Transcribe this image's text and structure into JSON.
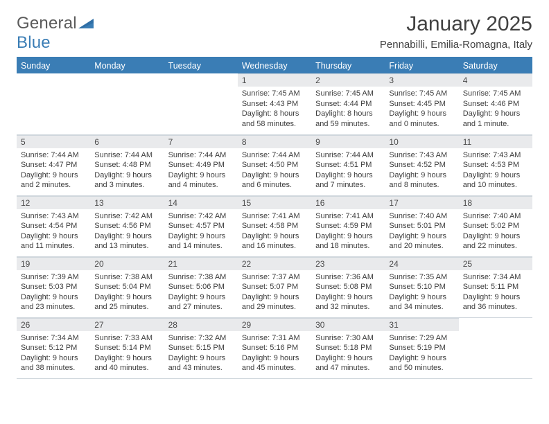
{
  "brand": {
    "name_a": "General",
    "name_b": "Blue"
  },
  "title": "January 2025",
  "subtitle": "Pennabilli, Emilia-Romagna, Italy",
  "colors": {
    "accent": "#3a7db5",
    "header_bg": "#3a7db5",
    "header_fg": "#ffffff",
    "daynum_bg": "#e9eaec",
    "rule": "#cfd6dc",
    "text": "#3d3d3d"
  },
  "day_names": [
    "Sunday",
    "Monday",
    "Tuesday",
    "Wednesday",
    "Thursday",
    "Friday",
    "Saturday"
  ],
  "weeks": [
    [
      null,
      null,
      null,
      {
        "n": "1",
        "sunrise": "7:45 AM",
        "sunset": "4:43 PM",
        "daylight": "8 hours and 58 minutes."
      },
      {
        "n": "2",
        "sunrise": "7:45 AM",
        "sunset": "4:44 PM",
        "daylight": "8 hours and 59 minutes."
      },
      {
        "n": "3",
        "sunrise": "7:45 AM",
        "sunset": "4:45 PM",
        "daylight": "9 hours and 0 minutes."
      },
      {
        "n": "4",
        "sunrise": "7:45 AM",
        "sunset": "4:46 PM",
        "daylight": "9 hours and 1 minute."
      }
    ],
    [
      {
        "n": "5",
        "sunrise": "7:44 AM",
        "sunset": "4:47 PM",
        "daylight": "9 hours and 2 minutes."
      },
      {
        "n": "6",
        "sunrise": "7:44 AM",
        "sunset": "4:48 PM",
        "daylight": "9 hours and 3 minutes."
      },
      {
        "n": "7",
        "sunrise": "7:44 AM",
        "sunset": "4:49 PM",
        "daylight": "9 hours and 4 minutes."
      },
      {
        "n": "8",
        "sunrise": "7:44 AM",
        "sunset": "4:50 PM",
        "daylight": "9 hours and 6 minutes."
      },
      {
        "n": "9",
        "sunrise": "7:44 AM",
        "sunset": "4:51 PM",
        "daylight": "9 hours and 7 minutes."
      },
      {
        "n": "10",
        "sunrise": "7:43 AM",
        "sunset": "4:52 PM",
        "daylight": "9 hours and 8 minutes."
      },
      {
        "n": "11",
        "sunrise": "7:43 AM",
        "sunset": "4:53 PM",
        "daylight": "9 hours and 10 minutes."
      }
    ],
    [
      {
        "n": "12",
        "sunrise": "7:43 AM",
        "sunset": "4:54 PM",
        "daylight": "9 hours and 11 minutes."
      },
      {
        "n": "13",
        "sunrise": "7:42 AM",
        "sunset": "4:56 PM",
        "daylight": "9 hours and 13 minutes."
      },
      {
        "n": "14",
        "sunrise": "7:42 AM",
        "sunset": "4:57 PM",
        "daylight": "9 hours and 14 minutes."
      },
      {
        "n": "15",
        "sunrise": "7:41 AM",
        "sunset": "4:58 PM",
        "daylight": "9 hours and 16 minutes."
      },
      {
        "n": "16",
        "sunrise": "7:41 AM",
        "sunset": "4:59 PM",
        "daylight": "9 hours and 18 minutes."
      },
      {
        "n": "17",
        "sunrise": "7:40 AM",
        "sunset": "5:01 PM",
        "daylight": "9 hours and 20 minutes."
      },
      {
        "n": "18",
        "sunrise": "7:40 AM",
        "sunset": "5:02 PM",
        "daylight": "9 hours and 22 minutes."
      }
    ],
    [
      {
        "n": "19",
        "sunrise": "7:39 AM",
        "sunset": "5:03 PM",
        "daylight": "9 hours and 23 minutes."
      },
      {
        "n": "20",
        "sunrise": "7:38 AM",
        "sunset": "5:04 PM",
        "daylight": "9 hours and 25 minutes."
      },
      {
        "n": "21",
        "sunrise": "7:38 AM",
        "sunset": "5:06 PM",
        "daylight": "9 hours and 27 minutes."
      },
      {
        "n": "22",
        "sunrise": "7:37 AM",
        "sunset": "5:07 PM",
        "daylight": "9 hours and 29 minutes."
      },
      {
        "n": "23",
        "sunrise": "7:36 AM",
        "sunset": "5:08 PM",
        "daylight": "9 hours and 32 minutes."
      },
      {
        "n": "24",
        "sunrise": "7:35 AM",
        "sunset": "5:10 PM",
        "daylight": "9 hours and 34 minutes."
      },
      {
        "n": "25",
        "sunrise": "7:34 AM",
        "sunset": "5:11 PM",
        "daylight": "9 hours and 36 minutes."
      }
    ],
    [
      {
        "n": "26",
        "sunrise": "7:34 AM",
        "sunset": "5:12 PM",
        "daylight": "9 hours and 38 minutes."
      },
      {
        "n": "27",
        "sunrise": "7:33 AM",
        "sunset": "5:14 PM",
        "daylight": "9 hours and 40 minutes."
      },
      {
        "n": "28",
        "sunrise": "7:32 AM",
        "sunset": "5:15 PM",
        "daylight": "9 hours and 43 minutes."
      },
      {
        "n": "29",
        "sunrise": "7:31 AM",
        "sunset": "5:16 PM",
        "daylight": "9 hours and 45 minutes."
      },
      {
        "n": "30",
        "sunrise": "7:30 AM",
        "sunset": "5:18 PM",
        "daylight": "9 hours and 47 minutes."
      },
      {
        "n": "31",
        "sunrise": "7:29 AM",
        "sunset": "5:19 PM",
        "daylight": "9 hours and 50 minutes."
      },
      null
    ]
  ],
  "labels": {
    "sunrise": "Sunrise:",
    "sunset": "Sunset:",
    "daylight": "Daylight:"
  }
}
